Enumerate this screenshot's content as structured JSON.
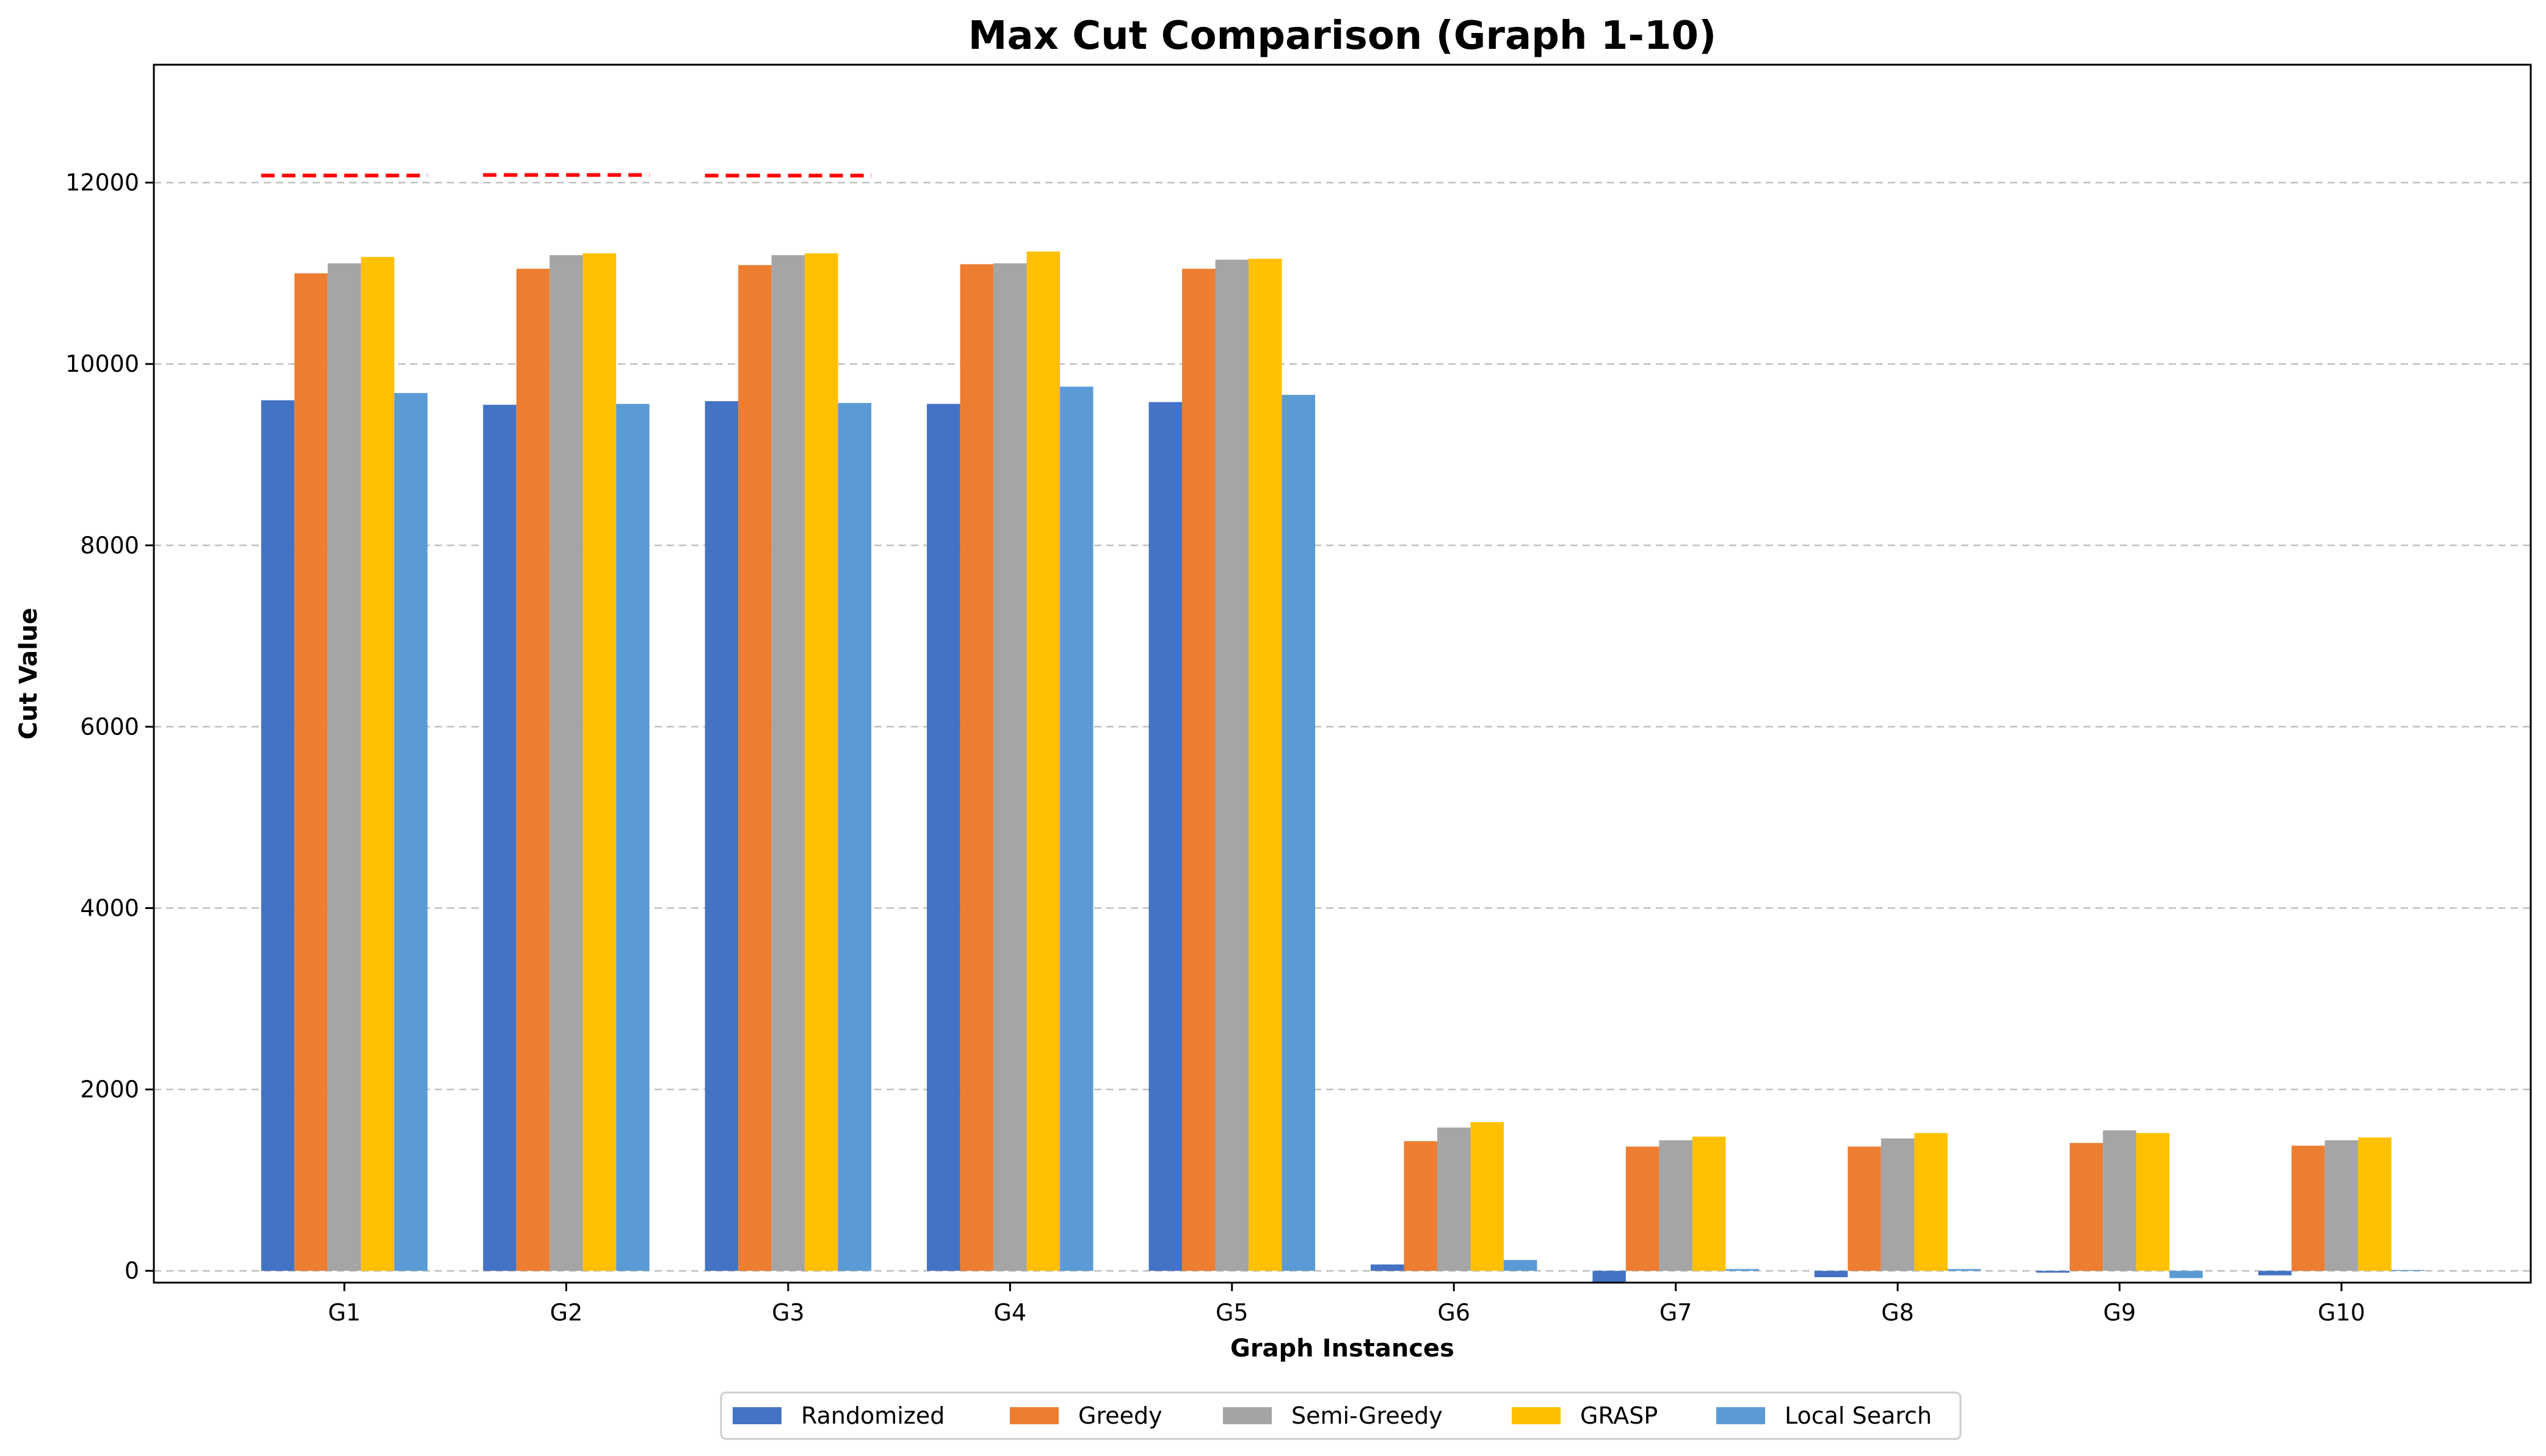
{
  "chart_data": {
    "type": "bar",
    "title": "Max Cut Comparison (Graph 1-10)",
    "xlabel": "Graph Instances",
    "ylabel": "Cut Value",
    "categories": [
      "G1",
      "G2",
      "G3",
      "G4",
      "G5",
      "G6",
      "G7",
      "G8",
      "G9",
      "G10"
    ],
    "ylim": [
      -130,
      13300
    ],
    "yticks": [
      0,
      2000,
      4000,
      6000,
      8000,
      10000,
      12000
    ],
    "grid": "y-dashed",
    "legend_position": "bottom-center",
    "series": [
      {
        "name": "Randomized",
        "color": "#4472C4",
        "values": [
          9600,
          9550,
          9590,
          9560,
          9580,
          70,
          -130,
          -70,
          -20,
          -50
        ]
      },
      {
        "name": "Greedy",
        "color": "#ED7D31",
        "values": [
          11000,
          11050,
          11090,
          11100,
          11050,
          1430,
          1370,
          1370,
          1410,
          1380
        ]
      },
      {
        "name": "Semi-Greedy",
        "color": "#A5A5A5",
        "values": [
          11110,
          11200,
          11200,
          11110,
          11150,
          1580,
          1440,
          1460,
          1550,
          1440
        ]
      },
      {
        "name": "GRASP",
        "color": "#FFC000",
        "values": [
          11180,
          11220,
          11220,
          11240,
          11160,
          1640,
          1480,
          1520,
          1520,
          1470
        ]
      },
      {
        "name": "Local Search",
        "color": "#5B9BD5",
        "values": [
          9680,
          9560,
          9570,
          9750,
          9660,
          120,
          20,
          20,
          -80,
          10
        ]
      }
    ],
    "reference_lines": [
      {
        "category": "G1",
        "value": 12078,
        "color": "#FF0000",
        "style": "dashed"
      },
      {
        "category": "G2",
        "value": 12084,
        "color": "#FF0000",
        "style": "dashed"
      },
      {
        "category": "G3",
        "value": 12077,
        "color": "#FF0000",
        "style": "dashed"
      }
    ]
  }
}
